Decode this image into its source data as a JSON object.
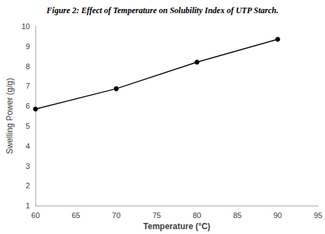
{
  "chart_data": {
    "type": "line",
    "title": "Figure 2: Effect of Temperature on Solubility Index of UTP Starch.",
    "x_label": "Temperature (°C)",
    "y_label": "Swelling Power (g/g)",
    "x": [
      60,
      70,
      80,
      90
    ],
    "values": [
      5.85,
      6.87,
      8.2,
      9.35
    ],
    "color": "#000000",
    "marker": "circle",
    "line_style": "solid",
    "xlim": [
      60,
      95
    ],
    "xticks": [
      60,
      65,
      70,
      75,
      80,
      85,
      90,
      95
    ],
    "ylim": [
      1,
      10
    ],
    "yticks": [
      1,
      2,
      3,
      4,
      5,
      6,
      7,
      8,
      9,
      10
    ],
    "grid": false
  }
}
